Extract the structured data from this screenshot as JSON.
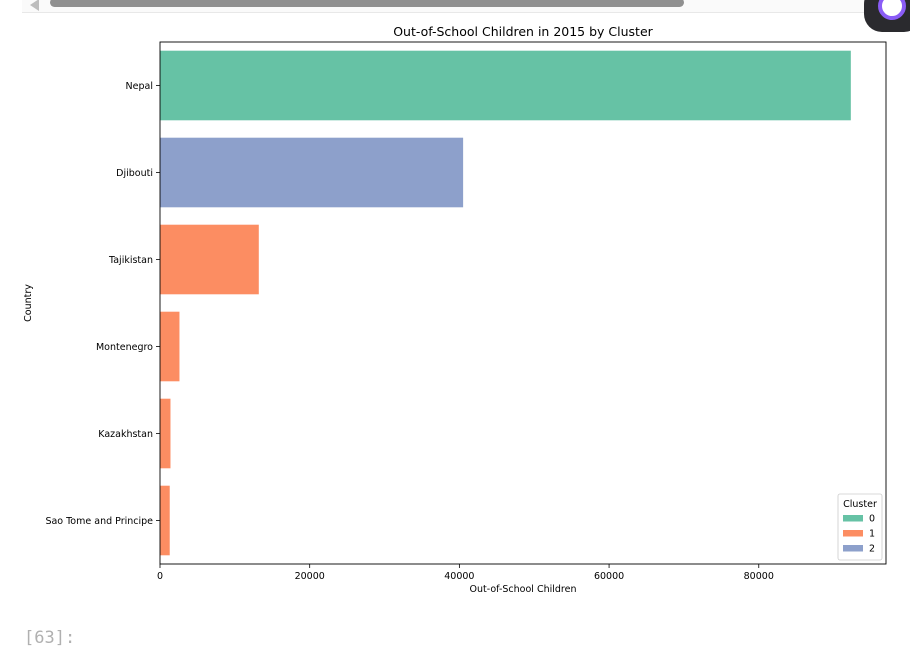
{
  "notebook": {
    "next_prompt": "[63]:"
  },
  "chart_data": {
    "type": "bar",
    "orientation": "horizontal",
    "title": "Out-of-School Children in 2015 by Cluster",
    "xlabel": "Out-of-School Children",
    "ylabel": "Country",
    "categories": [
      "Nepal",
      "Djibouti",
      "Tajikistan",
      "Montenegro",
      "Kazakhstan",
      "Sao Tome and Principe"
    ],
    "values": [
      92300,
      40500,
      13200,
      2600,
      1400,
      1300
    ],
    "cluster": [
      "0",
      "2",
      "1",
      "1",
      "1",
      "1"
    ],
    "xlim": [
      0,
      97000
    ],
    "xticks": [
      0,
      20000,
      40000,
      60000,
      80000
    ],
    "xtick_labels": [
      "0",
      "20000",
      "40000",
      "60000",
      "80000"
    ],
    "grid": false,
    "legend": {
      "title": "Cluster",
      "placement": "lower-right",
      "entries": [
        {
          "label": "0",
          "color": "#66c2a5"
        },
        {
          "label": "1",
          "color": "#fc8d62"
        },
        {
          "label": "2",
          "color": "#8da0cb"
        }
      ]
    },
    "colors": {
      "0": "#66c2a5",
      "1": "#fc8d62",
      "2": "#8da0cb"
    }
  }
}
